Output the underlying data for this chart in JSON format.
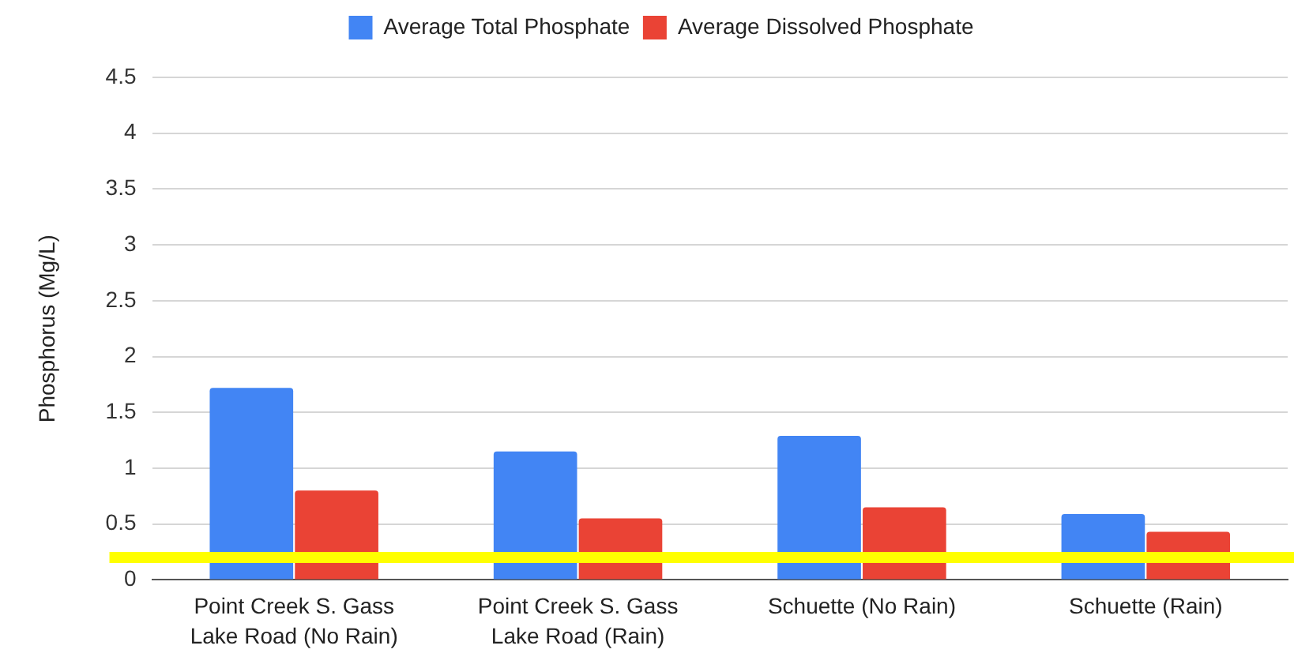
{
  "chart_data": {
    "type": "bar",
    "ylabel": "Phosphorus (Mg/L)",
    "categories": [
      "Point Creek S. Gass Lake Road (No Rain)",
      "Point Creek S. Gass Lake Road (Rain)",
      "Schuette (No Rain)",
      "Schuette (Rain)"
    ],
    "series": [
      {
        "name": "Average Total Phosphate",
        "color": "#4285f4",
        "values": [
          1.72,
          1.15,
          1.29,
          0.59
        ]
      },
      {
        "name": "Average Dissolved Phosphate",
        "color": "#ea4335",
        "values": [
          0.8,
          0.55,
          0.65,
          0.43
        ]
      }
    ],
    "ylim": [
      0,
      4.5
    ],
    "yticks": [
      0,
      0.5,
      1,
      1.5,
      2,
      2.5,
      3,
      3.5,
      4,
      4.5
    ],
    "grid": "y",
    "legend": "top",
    "ref_lines": [
      {
        "axis": "y",
        "value": 0.2,
        "color": "#ffff00"
      }
    ]
  }
}
